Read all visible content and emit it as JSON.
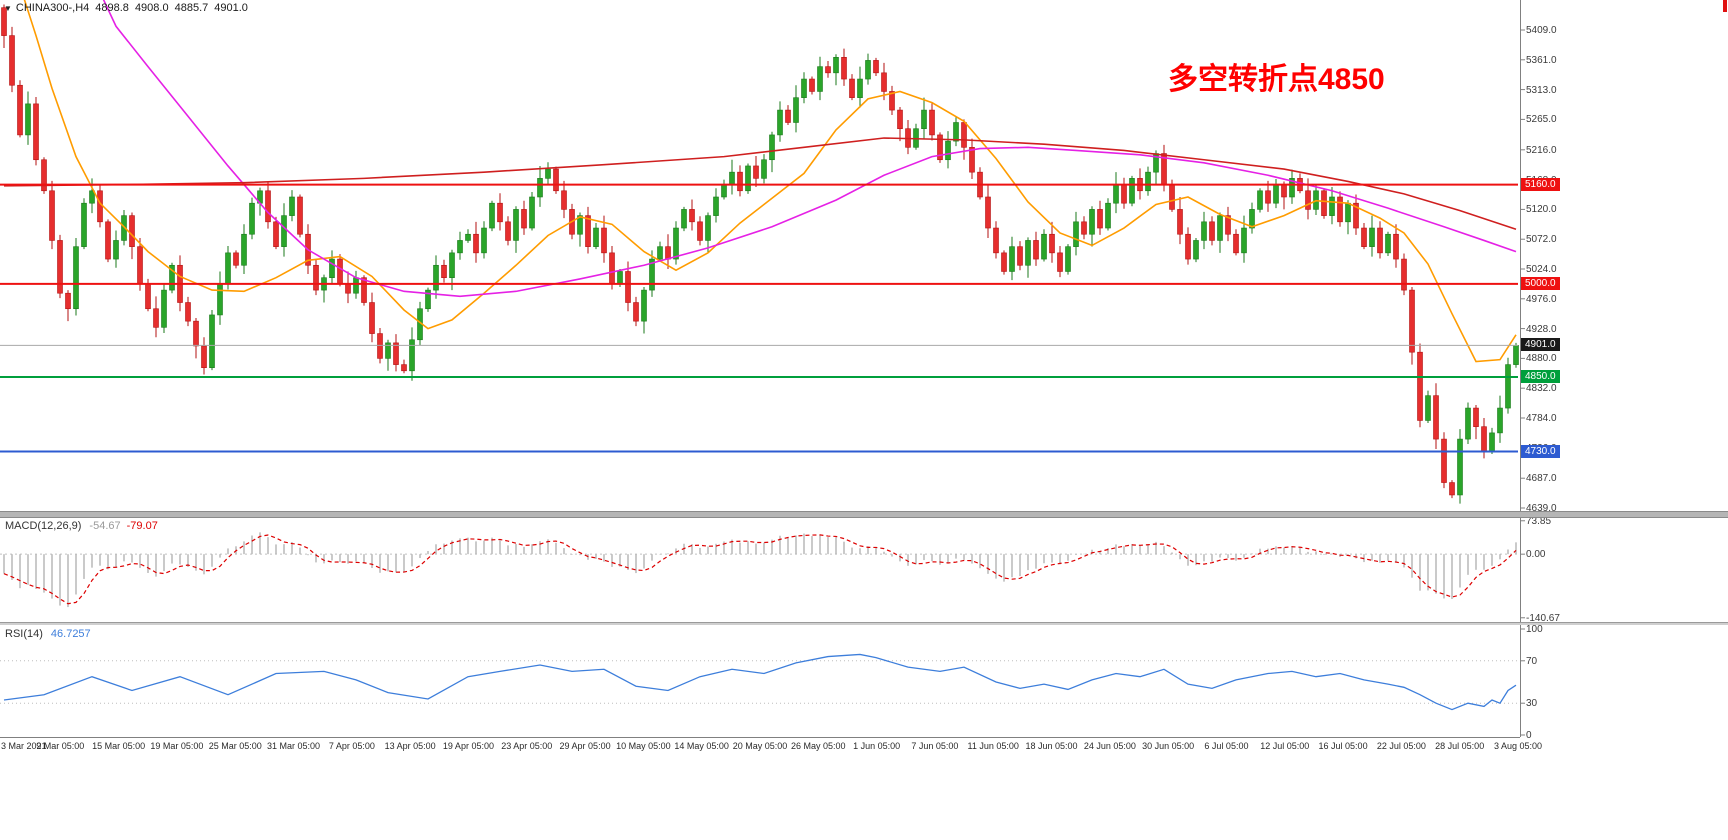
{
  "header": {
    "dropdown_icon": "▼",
    "symbol": "CHINA300-,H4",
    "open": "4898.8",
    "high": "4908.0",
    "low": "4885.7",
    "close": "4901.0"
  },
  "indicators": {
    "macd": {
      "label": "MACD(12,26,9)",
      "main_value": "-54.67",
      "signal_value": "-79.07",
      "axis_ticks": [
        "73.85",
        "0.00",
        "-140.67"
      ],
      "axis_tick_values": [
        73.85,
        0,
        -140.67
      ]
    },
    "rsi": {
      "label": "RSI(14)",
      "value": "46.7257",
      "axis_ticks": [
        "100",
        "70",
        "30",
        "0"
      ],
      "axis_tick_values": [
        100,
        70,
        30,
        0
      ],
      "level_lines": [
        70,
        30
      ]
    }
  },
  "chart_data": {
    "type": "candlestick",
    "symbol": "CHINA300-",
    "timeframe": "H4",
    "title": "CHINA300-,H4 4898.8 4908.0 4885.7 4901.0",
    "annotation": {
      "text": "多空转折点4850",
      "color": "#ff0000"
    },
    "last_bar": {
      "open": 4898.8,
      "high": 4908.0,
      "low": 4885.7,
      "close": 4901.0
    },
    "y_axis": {
      "ticks": [
        "5409.0",
        "5361.0",
        "5313.0",
        "5265.0",
        "5216.0",
        "5168.0",
        "5120.0",
        "5072.0",
        "5024.0",
        "4976.0",
        "4928.0",
        "4880.0",
        "4832.0",
        "4784.0",
        "4736.0",
        "4687.0",
        "4639.0"
      ]
    },
    "x_axis": {
      "labels": [
        "3 Mar 2021",
        "9 Mar 05:00",
        "15 Mar 05:00",
        "19 Mar 05:00",
        "25 Mar 05:00",
        "31 Mar 05:00",
        "7 Apr 05:00",
        "13 Apr 05:00",
        "19 Apr 05:00",
        "23 Apr 05:00",
        "29 Apr 05:00",
        "10 May 05:00",
        "14 May 05:00",
        "20 May 05:00",
        "26 May 05:00",
        "1 Jun 05:00",
        "7 Jun 05:00",
        "11 Jun 05:00",
        "18 Jun 05:00",
        "24 Jun 05:00",
        "30 Jun 05:00",
        "6 Jul 05:00",
        "12 Jul 05:00",
        "16 Jul 05:00",
        "22 Jul 05:00",
        "28 Jul 05:00",
        "3 Aug 05:00"
      ]
    },
    "levels": [
      {
        "price": 5160.0,
        "label": "5160.0",
        "color": "#ee1111",
        "width": 2,
        "tag_bg": "#ee1111"
      },
      {
        "price": 5000.0,
        "label": "5000.0",
        "color": "#ee1111",
        "width": 2,
        "tag_bg": "#ee1111"
      },
      {
        "price": 4901.0,
        "label": "4901.0",
        "color": "#a8a8a8",
        "width": 1,
        "tag_bg": "#1a1a1a",
        "current": true
      },
      {
        "price": 4850.0,
        "label": "4850.0",
        "color": "#009f3c",
        "width": 2,
        "tag_bg": "#009f3c"
      },
      {
        "price": 4730.0,
        "label": "4730.0",
        "color": "#2d5bd1",
        "width": 2,
        "tag_bg": "#2d5bd1"
      }
    ],
    "first_open": 5445,
    "closes": [
      5400,
      5320,
      5240,
      5290,
      5200,
      5150,
      5070,
      4985,
      4960,
      5060,
      5130,
      5150,
      5100,
      5040,
      5070,
      5110,
      5060,
      5000,
      4960,
      4930,
      4990,
      5030,
      4970,
      4940,
      4900,
      4865,
      4950,
      5000,
      5050,
      5030,
      5080,
      5130,
      5150,
      5100,
      5060,
      5110,
      5140,
      5080,
      5030,
      4990,
      5010,
      5040,
      5000,
      4985,
      5010,
      4970,
      4920,
      4880,
      4905,
      4870,
      4860,
      4910,
      4960,
      4990,
      5030,
      5010,
      5050,
      5070,
      5080,
      5050,
      5090,
      5130,
      5100,
      5070,
      5120,
      5090,
      5140,
      5170,
      5185,
      5150,
      5120,
      5080,
      5110,
      5060,
      5090,
      5050,
      5000,
      5020,
      4970,
      4940,
      4990,
      5040,
      5060,
      5040,
      5090,
      5120,
      5100,
      5070,
      5110,
      5140,
      5160,
      5180,
      5150,
      5190,
      5170,
      5200,
      5240,
      5280,
      5260,
      5300,
      5330,
      5310,
      5350,
      5340,
      5365,
      5330,
      5300,
      5330,
      5360,
      5340,
      5310,
      5280,
      5250,
      5220,
      5250,
      5280,
      5240,
      5200,
      5230,
      5260,
      5220,
      5180,
      5140,
      5090,
      5050,
      5020,
      5060,
      5030,
      5070,
      5040,
      5080,
      5050,
      5020,
      5060,
      5100,
      5080,
      5120,
      5090,
      5130,
      5160,
      5130,
      5170,
      5150,
      5180,
      5210,
      5160,
      5120,
      5080,
      5040,
      5070,
      5100,
      5070,
      5110,
      5080,
      5050,
      5090,
      5120,
      5150,
      5130,
      5160,
      5140,
      5170,
      5150,
      5120,
      5150,
      5110,
      5140,
      5100,
      5130,
      5090,
      5060,
      5090,
      5050,
      5080,
      5040,
      4990,
      4890,
      4780,
      4820,
      4750,
      4680,
      4660,
      4750,
      4800,
      4770,
      4730,
      4760,
      4800,
      4870,
      4901
    ],
    "wick_pattern": [
      5,
      14,
      8,
      20,
      11,
      4,
      16,
      9
    ],
    "colors": {
      "up": "#2aa52a",
      "up_stroke": "#1b7a1b",
      "down": "#e62e2e",
      "down_stroke": "#b31212",
      "macd_hist": "#b4b4b4",
      "macd_signal": "#dd0000",
      "rsi_line": "#3d7edb",
      "axis_line": "#808080"
    },
    "moving_averages": [
      {
        "name": "fast-ma",
        "color": "#ff9c00",
        "anchors": [
          [
            2,
            5480
          ],
          [
            4,
            5400
          ],
          [
            6,
            5315
          ],
          [
            9,
            5205
          ],
          [
            12,
            5130
          ],
          [
            15,
            5092
          ],
          [
            18,
            5052
          ],
          [
            22,
            5012
          ],
          [
            26,
            4990
          ],
          [
            30,
            4988
          ],
          [
            34,
            5010
          ],
          [
            38,
            5038
          ],
          [
            42,
            5044
          ],
          [
            46,
            5012
          ],
          [
            50,
            4958
          ],
          [
            53,
            4928
          ],
          [
            56,
            4942
          ],
          [
            60,
            4985
          ],
          [
            64,
            5030
          ],
          [
            68,
            5078
          ],
          [
            72,
            5108
          ],
          [
            76,
            5096
          ],
          [
            80,
            5052
          ],
          [
            84,
            5022
          ],
          [
            88,
            5050
          ],
          [
            92,
            5098
          ],
          [
            96,
            5138
          ],
          [
            100,
            5178
          ],
          [
            104,
            5248
          ],
          [
            108,
            5298
          ],
          [
            112,
            5310
          ],
          [
            116,
            5292
          ],
          [
            120,
            5262
          ],
          [
            124,
            5202
          ],
          [
            128,
            5132
          ],
          [
            132,
            5082
          ],
          [
            136,
            5062
          ],
          [
            140,
            5090
          ],
          [
            144,
            5128
          ],
          [
            148,
            5140
          ],
          [
            152,
            5112
          ],
          [
            156,
            5092
          ],
          [
            160,
            5110
          ],
          [
            164,
            5134
          ],
          [
            168,
            5130
          ],
          [
            172,
            5106
          ],
          [
            175,
            5082
          ],
          [
            178,
            5032
          ],
          [
            181,
            4952
          ],
          [
            184,
            4875
          ],
          [
            187,
            4878
          ],
          [
            189,
            4918
          ]
        ]
      },
      {
        "name": "medium-ma",
        "color": "#e521e5",
        "anchors": [
          [
            12,
            5470
          ],
          [
            14,
            5415
          ],
          [
            18,
            5350
          ],
          [
            23,
            5270
          ],
          [
            28,
            5190
          ],
          [
            33,
            5115
          ],
          [
            38,
            5055
          ],
          [
            44,
            5010
          ],
          [
            50,
            4988
          ],
          [
            57,
            4980
          ],
          [
            64,
            4988
          ],
          [
            72,
            5008
          ],
          [
            80,
            5030
          ],
          [
            88,
            5058
          ],
          [
            96,
            5092
          ],
          [
            104,
            5135
          ],
          [
            110,
            5175
          ],
          [
            116,
            5205
          ],
          [
            122,
            5218
          ],
          [
            128,
            5220
          ],
          [
            134,
            5215
          ],
          [
            142,
            5208
          ],
          [
            150,
            5195
          ],
          [
            158,
            5175
          ],
          [
            166,
            5150
          ],
          [
            173,
            5122
          ],
          [
            180,
            5092
          ],
          [
            185,
            5070
          ],
          [
            189,
            5052
          ]
        ]
      },
      {
        "name": "slow-ma",
        "color": "#cf1f1f",
        "anchors": [
          [
            0,
            5158
          ],
          [
            15,
            5160
          ],
          [
            30,
            5163
          ],
          [
            45,
            5170
          ],
          [
            60,
            5180
          ],
          [
            75,
            5192
          ],
          [
            90,
            5205
          ],
          [
            100,
            5220
          ],
          [
            110,
            5235
          ],
          [
            120,
            5232
          ],
          [
            130,
            5225
          ],
          [
            140,
            5215
          ],
          [
            150,
            5200
          ],
          [
            160,
            5185
          ],
          [
            168,
            5165
          ],
          [
            175,
            5145
          ],
          [
            182,
            5118
          ],
          [
            189,
            5088
          ]
        ]
      }
    ],
    "macd_render": {
      "fast": 4,
      "slow": 9,
      "signal": 3,
      "range": [
        -150,
        80
      ]
    },
    "rsi_points": [
      [
        0,
        33
      ],
      [
        5,
        38
      ],
      [
        11,
        55
      ],
      [
        16,
        42
      ],
      [
        22,
        55
      ],
      [
        28,
        38
      ],
      [
        34,
        58
      ],
      [
        40,
        60
      ],
      [
        44,
        52
      ],
      [
        48,
        40
      ],
      [
        53,
        34
      ],
      [
        58,
        55
      ],
      [
        62,
        60
      ],
      [
        67,
        66
      ],
      [
        71,
        60
      ],
      [
        75,
        62
      ],
      [
        79,
        46
      ],
      [
        83,
        42
      ],
      [
        87,
        55
      ],
      [
        91,
        62
      ],
      [
        95,
        58
      ],
      [
        99,
        68
      ],
      [
        103,
        74
      ],
      [
        107,
        76
      ],
      [
        109,
        73
      ],
      [
        113,
        64
      ],
      [
        117,
        60
      ],
      [
        120,
        64
      ],
      [
        124,
        50
      ],
      [
        127,
        44
      ],
      [
        130,
        48
      ],
      [
        133,
        43
      ],
      [
        136,
        52
      ],
      [
        139,
        58
      ],
      [
        142,
        55
      ],
      [
        145,
        62
      ],
      [
        148,
        48
      ],
      [
        151,
        44
      ],
      [
        154,
        52
      ],
      [
        158,
        58
      ],
      [
        161,
        60
      ],
      [
        164,
        55
      ],
      [
        167,
        58
      ],
      [
        170,
        52
      ],
      [
        173,
        48
      ],
      [
        175,
        45
      ],
      [
        177,
        38
      ],
      [
        179,
        30
      ],
      [
        181,
        24
      ],
      [
        183,
        30
      ],
      [
        185,
        27
      ],
      [
        186,
        33
      ],
      [
        187,
        30
      ],
      [
        188,
        42
      ],
      [
        189,
        47
      ]
    ],
    "prehistory": {
      "count": 30,
      "from": 5900,
      "to": 5430
    }
  }
}
